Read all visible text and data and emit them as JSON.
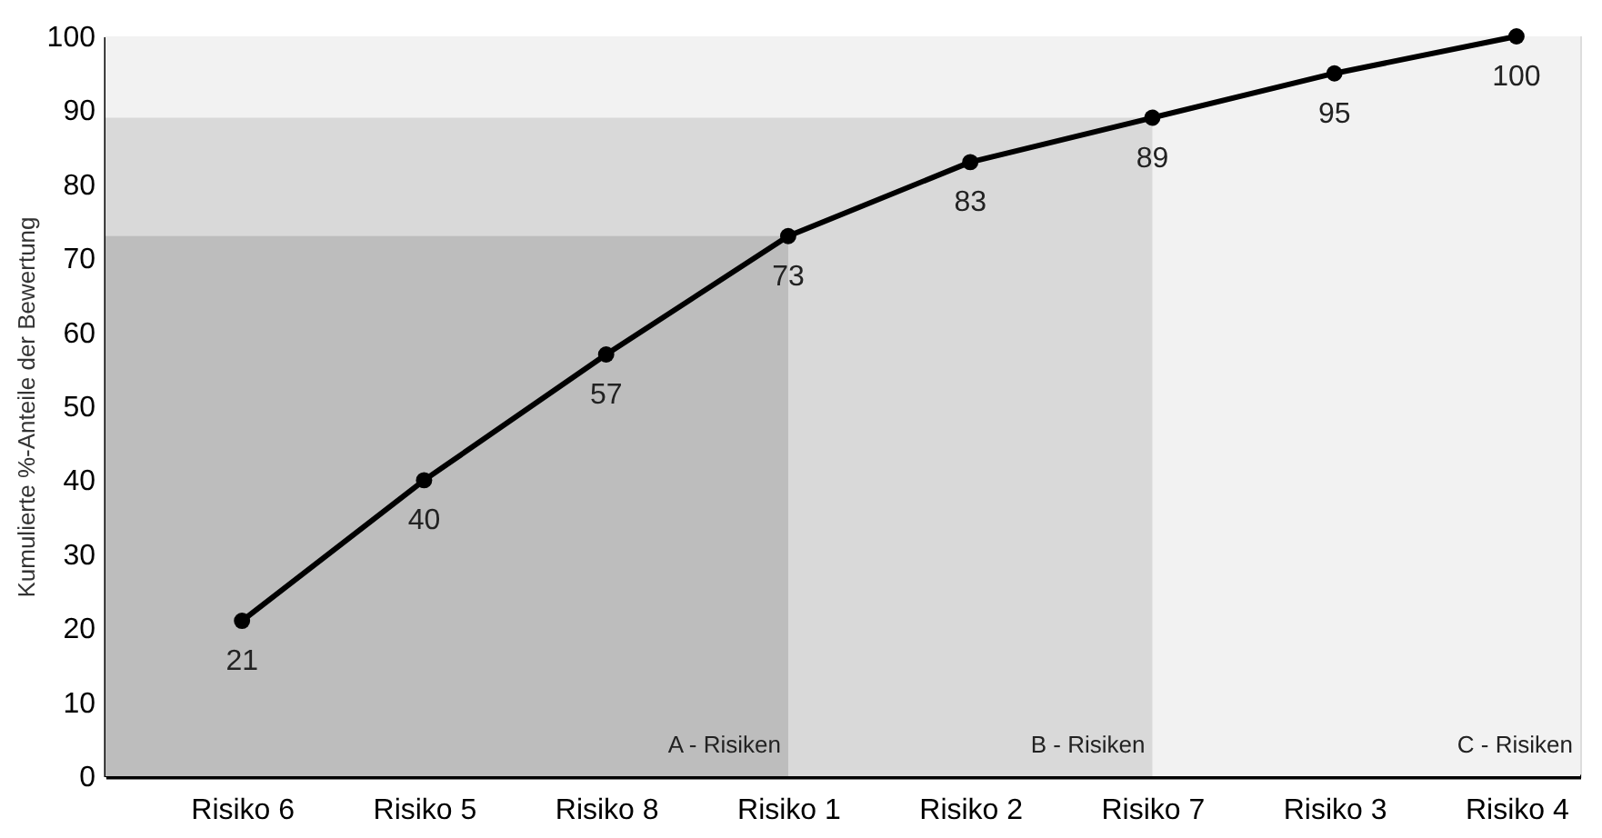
{
  "chart_data": {
    "type": "line",
    "ylabel": "Kumulierte %-Anteile der Bewertung",
    "categories": [
      "Risiko 6",
      "Risiko 5",
      "Risiko 8",
      "Risiko 1",
      "Risiko 2",
      "Risiko 7",
      "Risiko 3",
      "Risiko 4"
    ],
    "series": [
      {
        "color": "#000000",
        "values": [
          21,
          40,
          57,
          73,
          83,
          89,
          95,
          100
        ]
      }
    ],
    "ylim": [
      0,
      100
    ],
    "yticks": [
      0,
      10,
      20,
      30,
      40,
      50,
      60,
      70,
      80,
      90,
      100
    ],
    "bands": [
      {
        "axis": "y",
        "from": 0,
        "to": 100,
        "label": "C - Risiken",
        "color": "#f2f2f2"
      },
      {
        "axis": "y",
        "from": 0,
        "to": 89,
        "label": "B - Risiken",
        "color": "#d9d9d9"
      },
      {
        "axis": "y",
        "from": 0,
        "to": 73,
        "label": "A - Risiken",
        "color": "#bdbdbd"
      }
    ],
    "data_labels": true,
    "marker": "circle",
    "line_style": "solid"
  }
}
